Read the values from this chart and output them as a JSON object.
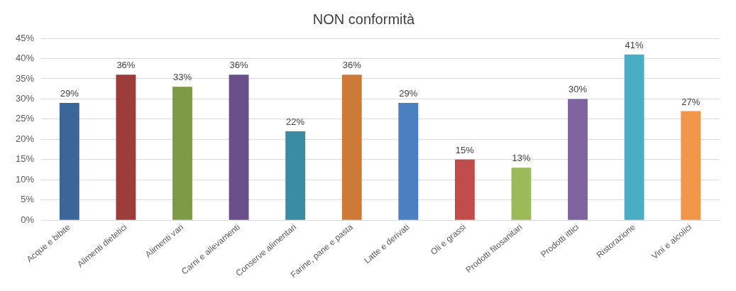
{
  "chart_data": {
    "type": "bar",
    "title": "NON conformità",
    "categories": [
      "Acque e bibite",
      "Alimenti dietetici",
      "Alimenti vari",
      "Carni e allevamenti",
      "Conserve alimentari",
      "Farine, pane e pasta",
      "Latte e derivati",
      "Oli e grassi",
      "Prodotti fitosanitari",
      "Prodotti ittici",
      "Ristorazione",
      "Vini e alcolici"
    ],
    "values": [
      29,
      36,
      33,
      36,
      22,
      36,
      29,
      15,
      13,
      30,
      41,
      27
    ],
    "colors": [
      "#3b6699",
      "#9c3d3b",
      "#7d9a45",
      "#6a4f8a",
      "#3a8ca3",
      "#cc7a35",
      "#4a7fc1",
      "#c04d4b",
      "#9bbb59",
      "#8064a2",
      "#4bacc6",
      "#f0954a"
    ],
    "value_labels": [
      "29%",
      "36%",
      "33%",
      "36%",
      "22%",
      "36%",
      "29%",
      "15%",
      "13%",
      "30%",
      "41%",
      "27%"
    ],
    "ylim": [
      0,
      45
    ],
    "yticks": [
      {
        "value": 0,
        "label": "0%"
      },
      {
        "value": 5,
        "label": "5%"
      },
      {
        "value": 10,
        "label": "10%"
      },
      {
        "value": 15,
        "label": "15%"
      },
      {
        "value": 20,
        "label": "20%"
      },
      {
        "value": 25,
        "label": "25%"
      },
      {
        "value": 30,
        "label": "30%"
      },
      {
        "value": 35,
        "label": "35%"
      },
      {
        "value": 40,
        "label": "40%"
      },
      {
        "value": 45,
        "label": "45%"
      }
    ],
    "grid": "y"
  }
}
